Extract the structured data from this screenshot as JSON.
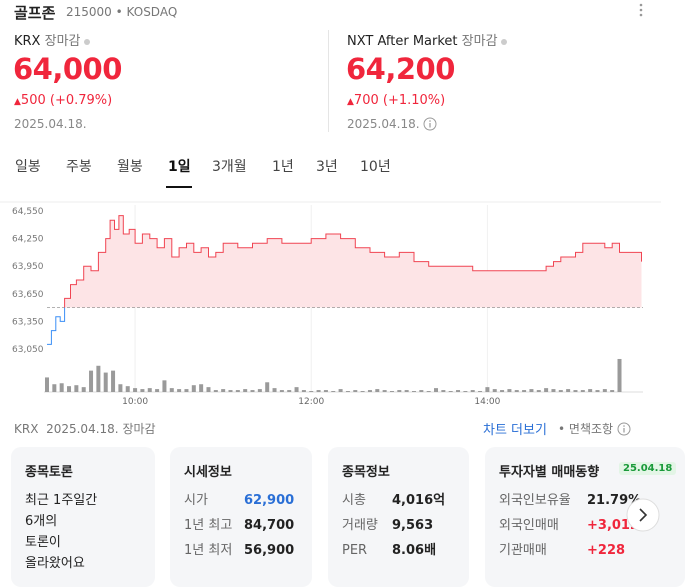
{
  "header": {
    "name": "골프존",
    "code": "215000",
    "market": "KOSDAQ"
  },
  "quotes": [
    {
      "venue": "KRX",
      "status": "장마감",
      "price": "64,000",
      "change": "500",
      "change_pct": "(+0.79%)",
      "date": "2025.04.18."
    },
    {
      "venue": "NXT After Market",
      "status": "장마감",
      "price": "64,200",
      "change": "700",
      "change_pct": "(+1.10%)",
      "date": "2025.04.18."
    }
  ],
  "tabs": [
    "일봉",
    "주봉",
    "월봉",
    "1일",
    "3개월",
    "1년",
    "3년",
    "10년"
  ],
  "active_tab": 3,
  "chart_data": {
    "type": "line",
    "x": [
      540,
      543,
      546,
      549,
      552,
      556,
      560,
      565,
      570,
      575,
      580,
      583,
      586,
      589,
      592,
      596,
      600,
      605,
      610,
      615,
      620,
      625,
      630,
      635,
      640,
      645,
      650,
      655,
      660,
      670,
      680,
      690,
      700,
      710,
      720,
      730,
      740,
      750,
      760,
      770,
      780,
      790,
      800,
      810,
      820,
      830,
      840,
      850,
      860,
      870,
      880,
      885,
      890,
      895,
      900,
      905,
      910,
      915,
      920,
      925,
      930,
      945
    ],
    "values": [
      63100,
      63250,
      63400,
      63350,
      63600,
      63750,
      63800,
      63950,
      63900,
      64100,
      64250,
      64450,
      64350,
      64500,
      64300,
      64350,
      64200,
      64300,
      64250,
      64150,
      64250,
      64050,
      64150,
      64200,
      64100,
      64150,
      64050,
      64100,
      64200,
      64150,
      64200,
      64250,
      64200,
      64200,
      64250,
      64300,
      64250,
      64150,
      64100,
      64050,
      64100,
      64000,
      63950,
      63950,
      63950,
      63900,
      63900,
      63900,
      63900,
      63900,
      63950,
      64000,
      64050,
      64050,
      64100,
      64200,
      64200,
      64200,
      64150,
      64200,
      64100,
      64000
    ],
    "base_value": 63500,
    "up_color": "#f04452",
    "down_color": "#3a8ef6",
    "area_color": "#fde4e6",
    "xlim": [
      540,
      946
    ],
    "xticks": [
      {
        "value": 600,
        "label": "10:00"
      },
      {
        "value": 720,
        "label": "12:00"
      },
      {
        "value": 840,
        "label": "14:00"
      }
    ],
    "ylim": [
      63050,
      64550
    ],
    "yticks": [
      {
        "value": 64550,
        "label": "64,550"
      },
      {
        "value": 64250,
        "label": "64,250"
      },
      {
        "value": 63950,
        "label": "63,950"
      },
      {
        "value": 63650,
        "label": "63,650"
      },
      {
        "value": 63350,
        "label": "63,350"
      },
      {
        "value": 63050,
        "label": "63,050"
      }
    ],
    "volume": {
      "color": "#9a9a9a",
      "ylim": [
        0,
        35
      ],
      "x": [
        540,
        545,
        550,
        555,
        560,
        565,
        570,
        575,
        580,
        585,
        590,
        595,
        600,
        605,
        610,
        615,
        620,
        625,
        630,
        635,
        640,
        645,
        650,
        655,
        660,
        665,
        670,
        675,
        680,
        685,
        690,
        695,
        700,
        705,
        710,
        715,
        720,
        725,
        730,
        735,
        740,
        745,
        750,
        755,
        760,
        765,
        770,
        775,
        780,
        785,
        790,
        795,
        800,
        805,
        810,
        815,
        820,
        825,
        830,
        835,
        840,
        845,
        850,
        855,
        860,
        865,
        870,
        875,
        880,
        885,
        890,
        895,
        900,
        905,
        910,
        915,
        920,
        925,
        930
      ],
      "values": [
        15,
        8,
        9,
        6,
        7,
        5,
        22,
        27,
        20,
        22,
        8,
        6,
        4,
        3,
        4,
        3,
        12,
        4,
        3,
        3,
        7,
        8,
        5,
        2,
        3,
        2,
        2,
        3,
        2,
        3,
        10,
        4,
        2,
        2,
        5,
        2,
        1,
        2,
        2,
        1,
        3,
        1,
        2,
        1,
        2,
        3,
        2,
        1,
        2,
        2,
        1,
        2,
        1,
        4,
        2,
        1,
        2,
        1,
        2,
        1,
        5,
        3,
        2,
        3,
        2,
        2,
        3,
        2,
        4,
        3,
        2,
        3,
        2,
        2,
        3,
        2,
        3,
        2,
        34
      ]
    }
  },
  "footer": {
    "venue": "KRX",
    "date": "2025.04.18.",
    "status": "장마감",
    "more": "차트 더보기",
    "disclaimer": "면책조항"
  },
  "cards": [
    {
      "title": "종목토론",
      "lines": [
        "최근 1주일간",
        "6개의",
        "토론이",
        "올라왔어요"
      ]
    },
    {
      "title": "시세정보",
      "rows": [
        [
          "시가",
          "62,900"
        ],
        [
          "1년 최고",
          "84,700"
        ],
        [
          "1년 최저",
          "56,900"
        ]
      ]
    },
    {
      "title": "종목정보",
      "rows": [
        [
          "시총",
          "4,016억"
        ],
        [
          "거래량",
          "9,563"
        ],
        [
          "PER",
          "8.06배"
        ]
      ]
    },
    {
      "title": "투자자별 매매동향",
      "badge": "25.04.18",
      "rows": [
        [
          "외국인보유율",
          "21.79%"
        ],
        [
          "외국인매매",
          "+3,012"
        ],
        [
          "기관매매",
          "+228"
        ]
      ]
    }
  ]
}
